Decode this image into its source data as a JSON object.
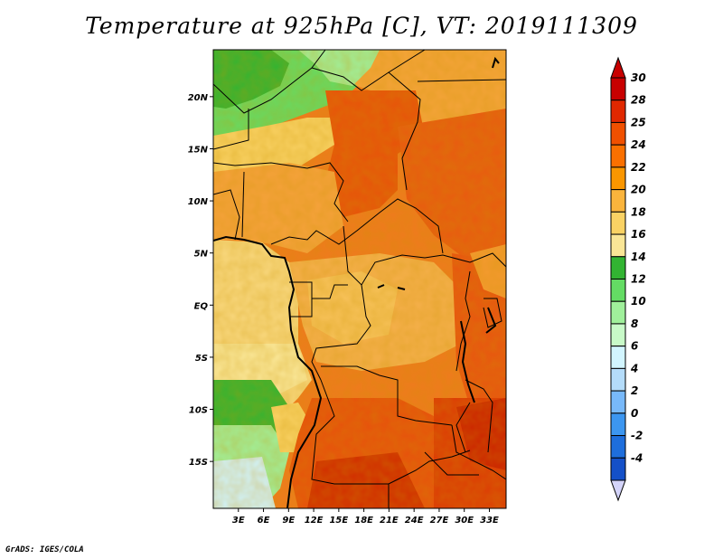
{
  "title": "Temperature at 925hPa [C], VT: 2019111309",
  "footer": "GrADS: IGES/COLA",
  "map": {
    "lat_labels": [
      "20N",
      "15N",
      "10N",
      "5N",
      "EQ",
      "5S",
      "10S",
      "15S"
    ],
    "lon_labels": [
      "3E",
      "6E",
      "9E",
      "12E",
      "15E",
      "18E",
      "21E",
      "24E",
      "27E",
      "30E",
      "33E"
    ],
    "lat_range": [
      -19.5,
      24.5
    ],
    "lon_range": [
      0,
      35
    ]
  },
  "colorbar": {
    "labels": [
      "30",
      "28",
      "25",
      "24",
      "22",
      "20",
      "18",
      "16",
      "14",
      "12",
      "10",
      "8",
      "6",
      "4",
      "2",
      "0",
      "-2",
      "-4"
    ],
    "colors": [
      "#c80000",
      "#e02800",
      "#f05000",
      "#fa7000",
      "#fa9600",
      "#fab43c",
      "#fad264",
      "#fae696",
      "#32b432",
      "#64dc64",
      "#a0f09b",
      "#c8fac8",
      "#d2f5ff",
      "#b4dcfa",
      "#78b9fa",
      "#3c96f0",
      "#1e6edc",
      "#1450c8",
      "#0a28a0",
      "#000073"
    ],
    "top_arrow_color": "#c80000",
    "bottom_arrow_color": "#d4d4fa"
  }
}
